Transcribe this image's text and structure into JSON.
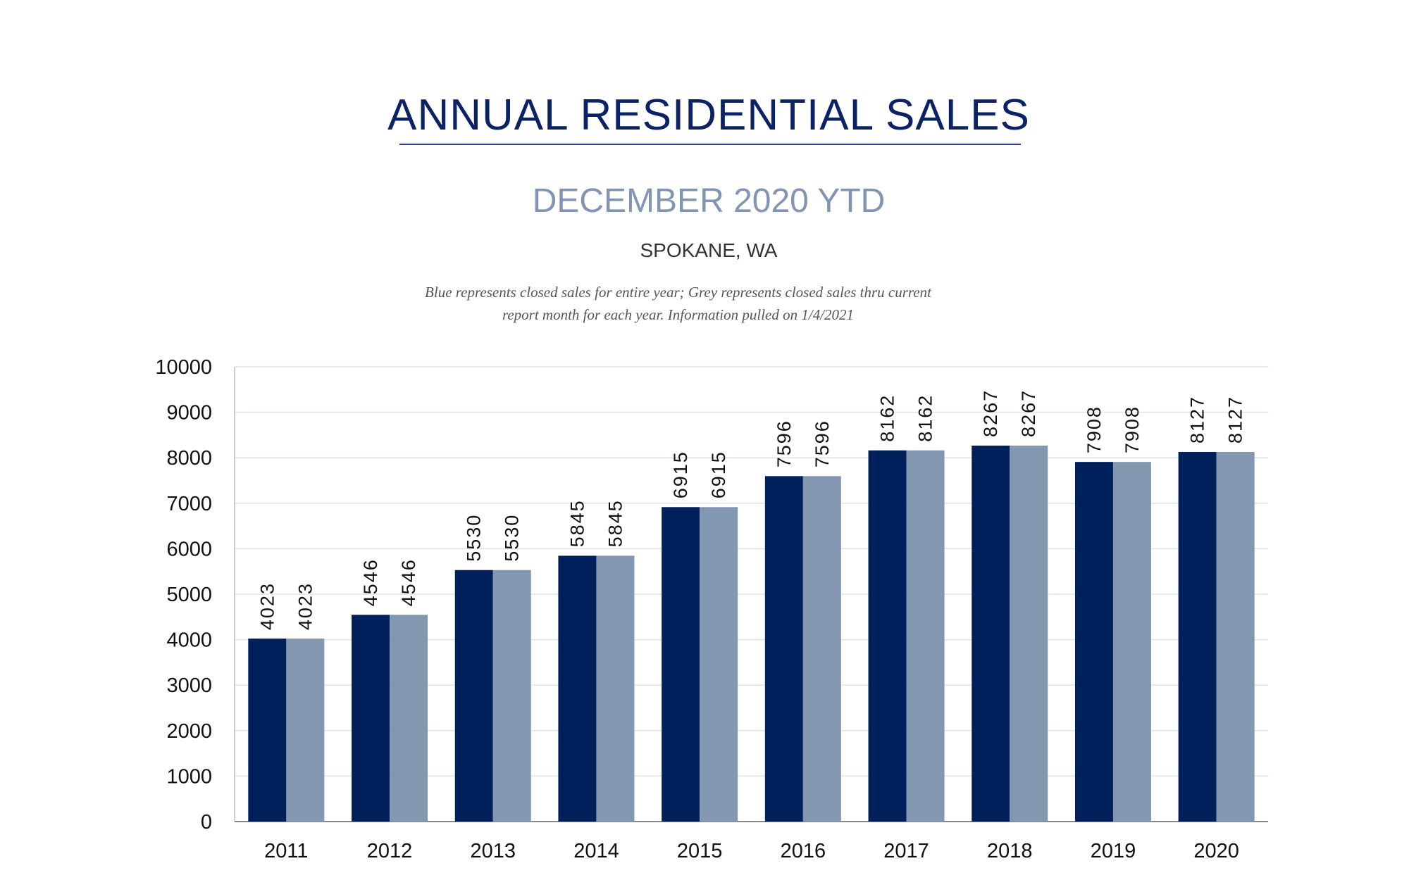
{
  "header": {
    "title": "ANNUAL RESIDENTIAL SALES",
    "subtitle": "DECEMBER 2020 YTD",
    "location": "SPOKANE, WA",
    "note_line1": "Blue represents closed sales for entire year; Grey represents closed sales thru current",
    "note_line2": "report month for each year.  Information pulled on 1/4/2021"
  },
  "chart_data": {
    "type": "bar",
    "title": "ANNUAL RESIDENTIAL SALES",
    "categories": [
      "2011",
      "2012",
      "2013",
      "2014",
      "2015",
      "2016",
      "2017",
      "2018",
      "2019",
      "2020"
    ],
    "series": [
      {
        "color": "#00205b",
        "values": [
          4023,
          4546,
          5530,
          5845,
          6915,
          7596,
          8162,
          8267,
          7908,
          8127
        ]
      },
      {
        "color": "#8497b0",
        "values": [
          4023,
          4546,
          5530,
          5845,
          6915,
          7596,
          8162,
          8267,
          7908,
          8127
        ]
      }
    ],
    "ylim": [
      0,
      10000
    ],
    "yticks": [
      0,
      1000,
      2000,
      3000,
      4000,
      5000,
      6000,
      7000,
      8000,
      9000,
      10000
    ],
    "grid": true,
    "legend": "none",
    "data_labels": "rotated-above"
  }
}
